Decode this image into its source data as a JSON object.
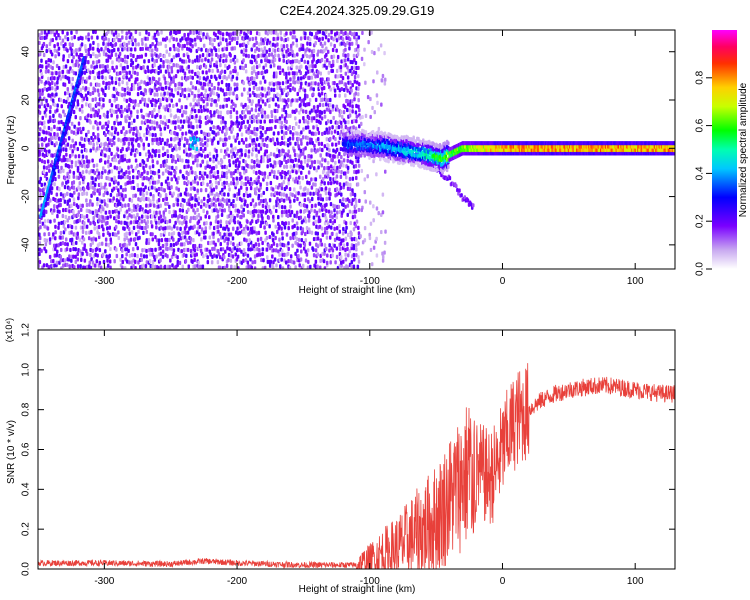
{
  "title": "C2E4.2024.325.09.29.G19",
  "colors": {
    "snr_line": "#e8403a",
    "frame": "#000000"
  },
  "chart_data": [
    {
      "type": "heatmap",
      "title": "C2E4.2024.325.09.29.G19",
      "xlabel": "Height of straight line (km)",
      "ylabel": "Frequency (Hz)",
      "xlim": [
        -350,
        130
      ],
      "ylim": [
        -50,
        49
      ],
      "xticks": [
        -300,
        -200,
        -100,
        0,
        100
      ],
      "xtick_labels": [
        "-300",
        "-200",
        "-100",
        "0",
        "100"
      ],
      "yticks": [
        -40,
        -20,
        0,
        20,
        40
      ],
      "ytick_labels": [
        "-40",
        "-20",
        "0",
        "20",
        "40"
      ],
      "colorbar": {
        "label": "Normalized spectral amplitude",
        "range": [
          0,
          1
        ],
        "ticks": [
          0.0,
          0.2,
          0.4,
          0.6,
          0.8
        ],
        "tick_labels": [
          "0.0",
          "0.2",
          "0.4",
          "0.6",
          "0.8"
        ],
        "colormap": "rainbow (white-violet-blue-cyan-green-yellow-red-magenta)"
      },
      "features": {
        "noise_region_x": [
          -350,
          -108
        ],
        "diagonal_streak": [
          [
            -348,
            -28
          ],
          [
            -315,
            38
          ]
        ],
        "blob": {
          "x": -232,
          "y": 2
        },
        "ridge": [
          [
            -120,
            2
          ],
          [
            -90,
            1
          ],
          [
            -60,
            -2
          ],
          [
            -45,
            -4
          ],
          [
            -30,
            0
          ],
          [
            0,
            0
          ],
          [
            60,
            0
          ],
          [
            130,
            0
          ]
        ],
        "ridge_amplitude": [
          [
            -120,
            0.35
          ],
          [
            -60,
            0.5
          ],
          [
            -40,
            0.7
          ],
          [
            0,
            0.95
          ],
          [
            130,
            0.95
          ]
        ],
        "secondary_branch": [
          [
            -70,
            -2
          ],
          [
            -45,
            -10
          ],
          [
            -30,
            -20
          ],
          [
            -22,
            -24
          ]
        ]
      }
    },
    {
      "type": "line",
      "xlabel": "Height of straight line (km)",
      "ylabel": "SNR (10 * v/v)",
      "y_multiplier": "(x10⁴)",
      "xlim": [
        -350,
        130
      ],
      "ylim": [
        0,
        1.2
      ],
      "xticks": [
        -300,
        -200,
        -100,
        0,
        100
      ],
      "xtick_labels": [
        "-300",
        "-200",
        "-100",
        "0",
        "100"
      ],
      "yticks": [
        0.0,
        0.2,
        0.4,
        0.6,
        0.8,
        1.0,
        1.2
      ],
      "ytick_labels": [
        "0.0",
        "0.2",
        "0.4",
        "0.6",
        "0.8",
        "1.0",
        "1.2"
      ],
      "series": [
        {
          "x": [
            -350,
            -300,
            -250,
            -225,
            -200,
            -150,
            -110,
            -100,
            -90,
            -80,
            -70,
            -60,
            -50,
            -40,
            -30,
            -25,
            -20,
            -15,
            -10,
            -5,
            0,
            5,
            10,
            20,
            30,
            40,
            50,
            60,
            70,
            80,
            90,
            100,
            110,
            120,
            130
          ],
          "y": [
            0.03,
            0.03,
            0.025,
            0.04,
            0.03,
            0.02,
            0.02,
            0.04,
            0.08,
            0.1,
            0.15,
            0.2,
            0.25,
            0.35,
            0.45,
            0.5,
            0.5,
            0.48,
            0.45,
            0.5,
            0.6,
            0.68,
            0.75,
            0.8,
            0.85,
            0.88,
            0.9,
            0.91,
            0.92,
            0.92,
            0.91,
            0.9,
            0.89,
            0.88,
            0.88
          ]
        }
      ]
    }
  ]
}
